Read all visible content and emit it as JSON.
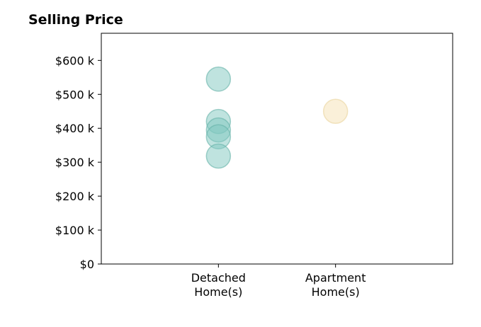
{
  "chart_data": {
    "type": "scatter",
    "title": "Selling Price",
    "xlabel": "",
    "ylabel": "",
    "categories": [
      [
        "Detached",
        "Home(s)"
      ],
      [
        "Apartment",
        "Home(s)"
      ]
    ],
    "yticks": [
      0,
      100,
      200,
      300,
      400,
      500,
      600
    ],
    "ytick_labels": [
      "$0",
      "$100 k",
      "$200 k",
      "$300 k",
      "$400 k",
      "$500 k",
      "$600 k"
    ],
    "ylim": [
      0,
      680
    ],
    "xlim": [
      0,
      3
    ],
    "grid": false,
    "legend": "none",
    "series": [
      {
        "category_index": 0,
        "color": "#7fc8bf",
        "stroke": "#66b2a8",
        "values": [
          545,
          420,
          395,
          375,
          318
        ]
      },
      {
        "category_index": 1,
        "color": "#f6e2b3",
        "stroke": "#ead39d",
        "values": [
          450
        ]
      }
    ]
  }
}
